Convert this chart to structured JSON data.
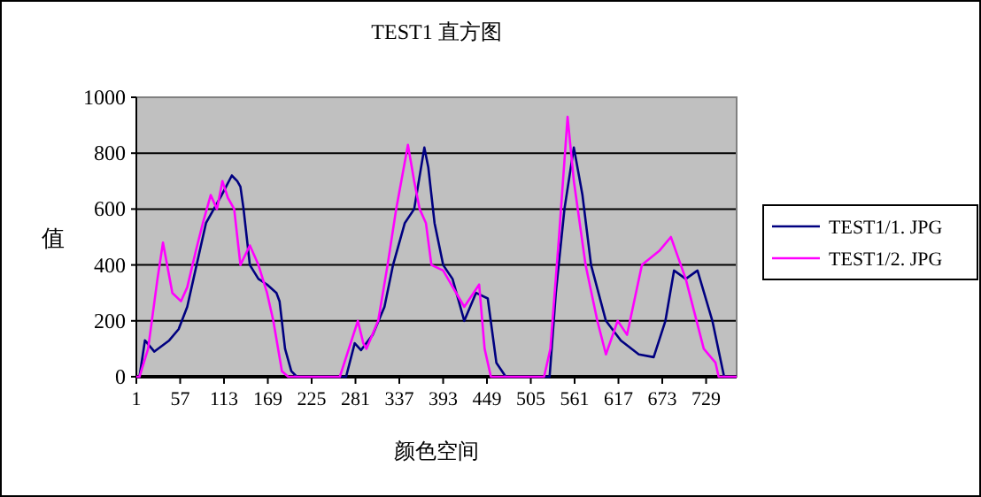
{
  "chart_data": {
    "type": "line",
    "title": "TEST1 直方图",
    "xlabel": "颜色空间",
    "ylabel": "值",
    "xlim": [
      1,
      768
    ],
    "xticks": [
      1,
      57,
      113,
      169,
      225,
      281,
      337,
      393,
      449,
      505,
      561,
      617,
      673,
      729
    ],
    "ylim": [
      0,
      1000
    ],
    "yticks": [
      0,
      200,
      400,
      600,
      800,
      1000
    ],
    "grid": "y",
    "legend": "right",
    "marker": "none",
    "line_style": "solid",
    "series": [
      {
        "name": "TEST1/1. JPG",
        "color": "#000080",
        "x": [
          1,
          5,
          12,
          24,
          43,
          55,
          66,
          74,
          82,
          90,
          100,
          110,
          123,
          130,
          134,
          138,
          146,
          157,
          168,
          180,
          184,
          191,
          199,
          206,
          262,
          269,
          280,
          288,
          303,
          318,
          329,
          344,
          356,
          369,
          374,
          382,
          393,
          405,
          420,
          435,
          450,
          461,
          473,
          522,
          529,
          537,
          548,
          560,
          571,
          582,
          601,
          620,
          643,
          662,
          677,
          688,
          703,
          718,
          737,
          752,
          768
        ],
        "values": [
          0,
          0,
          130,
          90,
          130,
          170,
          250,
          350,
          450,
          550,
          600,
          650,
          720,
          700,
          680,
          600,
          400,
          350,
          330,
          300,
          270,
          100,
          20,
          0,
          0,
          0,
          120,
          95,
          150,
          250,
          400,
          550,
          600,
          820,
          750,
          550,
          400,
          350,
          200,
          300,
          280,
          50,
          0,
          0,
          0,
          300,
          600,
          820,
          650,
          400,
          200,
          130,
          80,
          70,
          200,
          380,
          350,
          380,
          200,
          0,
          0
        ]
      },
      {
        "name": "TEST1/2. JPG",
        "color": "#ff00ff",
        "x": [
          1,
          5,
          16,
          28,
          35,
          47,
          58,
          66,
          77,
          86,
          96,
          104,
          111,
          118,
          126,
          134,
          146,
          157,
          168,
          176,
          187,
          195,
          255,
          261,
          284,
          291,
          295,
          310,
          322,
          333,
          348,
          356,
          363,
          371,
          378,
          393,
          420,
          439,
          446,
          454,
          515,
          522,
          530,
          541,
          552,
          560,
          575,
          590,
          601,
          616,
          628,
          647,
          669,
          684,
          703,
          726,
          741,
          745,
          768
        ],
        "values": [
          0,
          0,
          100,
          350,
          480,
          300,
          270,
          320,
          450,
          550,
          650,
          600,
          700,
          640,
          600,
          400,
          470,
          400,
          300,
          200,
          20,
          0,
          0,
          0,
          200,
          120,
          100,
          200,
          400,
          600,
          830,
          700,
          600,
          550,
          400,
          380,
          250,
          330,
          100,
          0,
          0,
          0,
          100,
          500,
          930,
          700,
          400,
          200,
          80,
          200,
          150,
          400,
          450,
          500,
          350,
          100,
          50,
          0,
          0
        ]
      }
    ]
  }
}
